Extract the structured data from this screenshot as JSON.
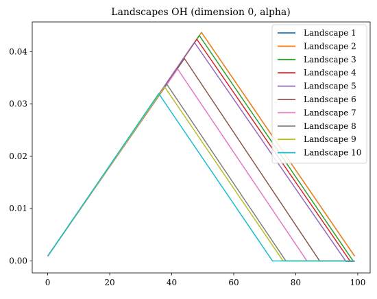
{
  "chart_data": {
    "type": "line",
    "title": "Landscapes OH (dimension 0, alpha)",
    "xlabel": "",
    "ylabel": "",
    "xlim": [
      -5,
      104
    ],
    "ylim": [
      -0.0023,
      0.0457
    ],
    "xticks": [
      {
        "value": 0,
        "label": "0"
      },
      {
        "value": 20,
        "label": "20"
      },
      {
        "value": 40,
        "label": "40"
      },
      {
        "value": 60,
        "label": "60"
      },
      {
        "value": 80,
        "label": "80"
      },
      {
        "value": 100,
        "label": "100"
      }
    ],
    "yticks": [
      {
        "value": 0.0,
        "label": "0.00"
      },
      {
        "value": 0.01,
        "label": "0.01"
      },
      {
        "value": 0.02,
        "label": "0.02"
      },
      {
        "value": 0.03,
        "label": "0.03"
      },
      {
        "value": 0.04,
        "label": "0.04"
      }
    ],
    "grid": false,
    "legend_position": "top-right",
    "series": [
      {
        "name": "Landscape 1",
        "color": "#1f77b4",
        "x": [
          0,
          49.6,
          99
        ],
        "y": [
          0.0009,
          0.0437,
          0.0009
        ]
      },
      {
        "name": "Landscape 2",
        "color": "#ff7f0e",
        "x": [
          0,
          49.6,
          99
        ],
        "y": [
          0.0009,
          0.0437,
          0.0009
        ]
      },
      {
        "name": "Landscape 3",
        "color": "#2ca02c",
        "x": [
          0,
          48.9,
          98.5,
          99
        ],
        "y": [
          0.0009,
          0.0431,
          0.0,
          0.0
        ]
      },
      {
        "name": "Landscape 4",
        "color": "#d62728",
        "x": [
          0,
          48.1,
          97.5,
          99
        ],
        "y": [
          0.0009,
          0.0424,
          0.0,
          0.0
        ]
      },
      {
        "name": "Landscape 5",
        "color": "#9467bd",
        "x": [
          0,
          47.3,
          96.2,
          99
        ],
        "y": [
          0.0009,
          0.0418,
          -0.0001,
          -0.0001
        ]
      },
      {
        "name": "Landscape 6",
        "color": "#8c564b",
        "x": [
          0,
          44.1,
          87.7,
          99
        ],
        "y": [
          0.0009,
          0.0387,
          0.0,
          0.0
        ]
      },
      {
        "name": "Landscape 7",
        "color": "#e377c2",
        "x": [
          0,
          41.9,
          83.6,
          99
        ],
        "y": [
          0.0009,
          0.0367,
          0.0,
          0.0
        ]
      },
      {
        "name": "Landscape 8",
        "color": "#7f7f7f",
        "x": [
          0,
          38.4,
          76.8,
          99
        ],
        "y": [
          0.0009,
          0.0338,
          0.0,
          0.0
        ]
      },
      {
        "name": "Landscape 9",
        "color": "#bcbd22",
        "x": [
          0,
          37.7,
          75.9,
          99
        ],
        "y": [
          0.0009,
          0.0333,
          0.0,
          0.0
        ]
      },
      {
        "name": "Landscape 10",
        "color": "#17becf",
        "x": [
          0,
          35.8,
          72.5,
          99
        ],
        "y": [
          0.0009,
          0.032,
          0.0,
          0.0
        ]
      }
    ]
  }
}
